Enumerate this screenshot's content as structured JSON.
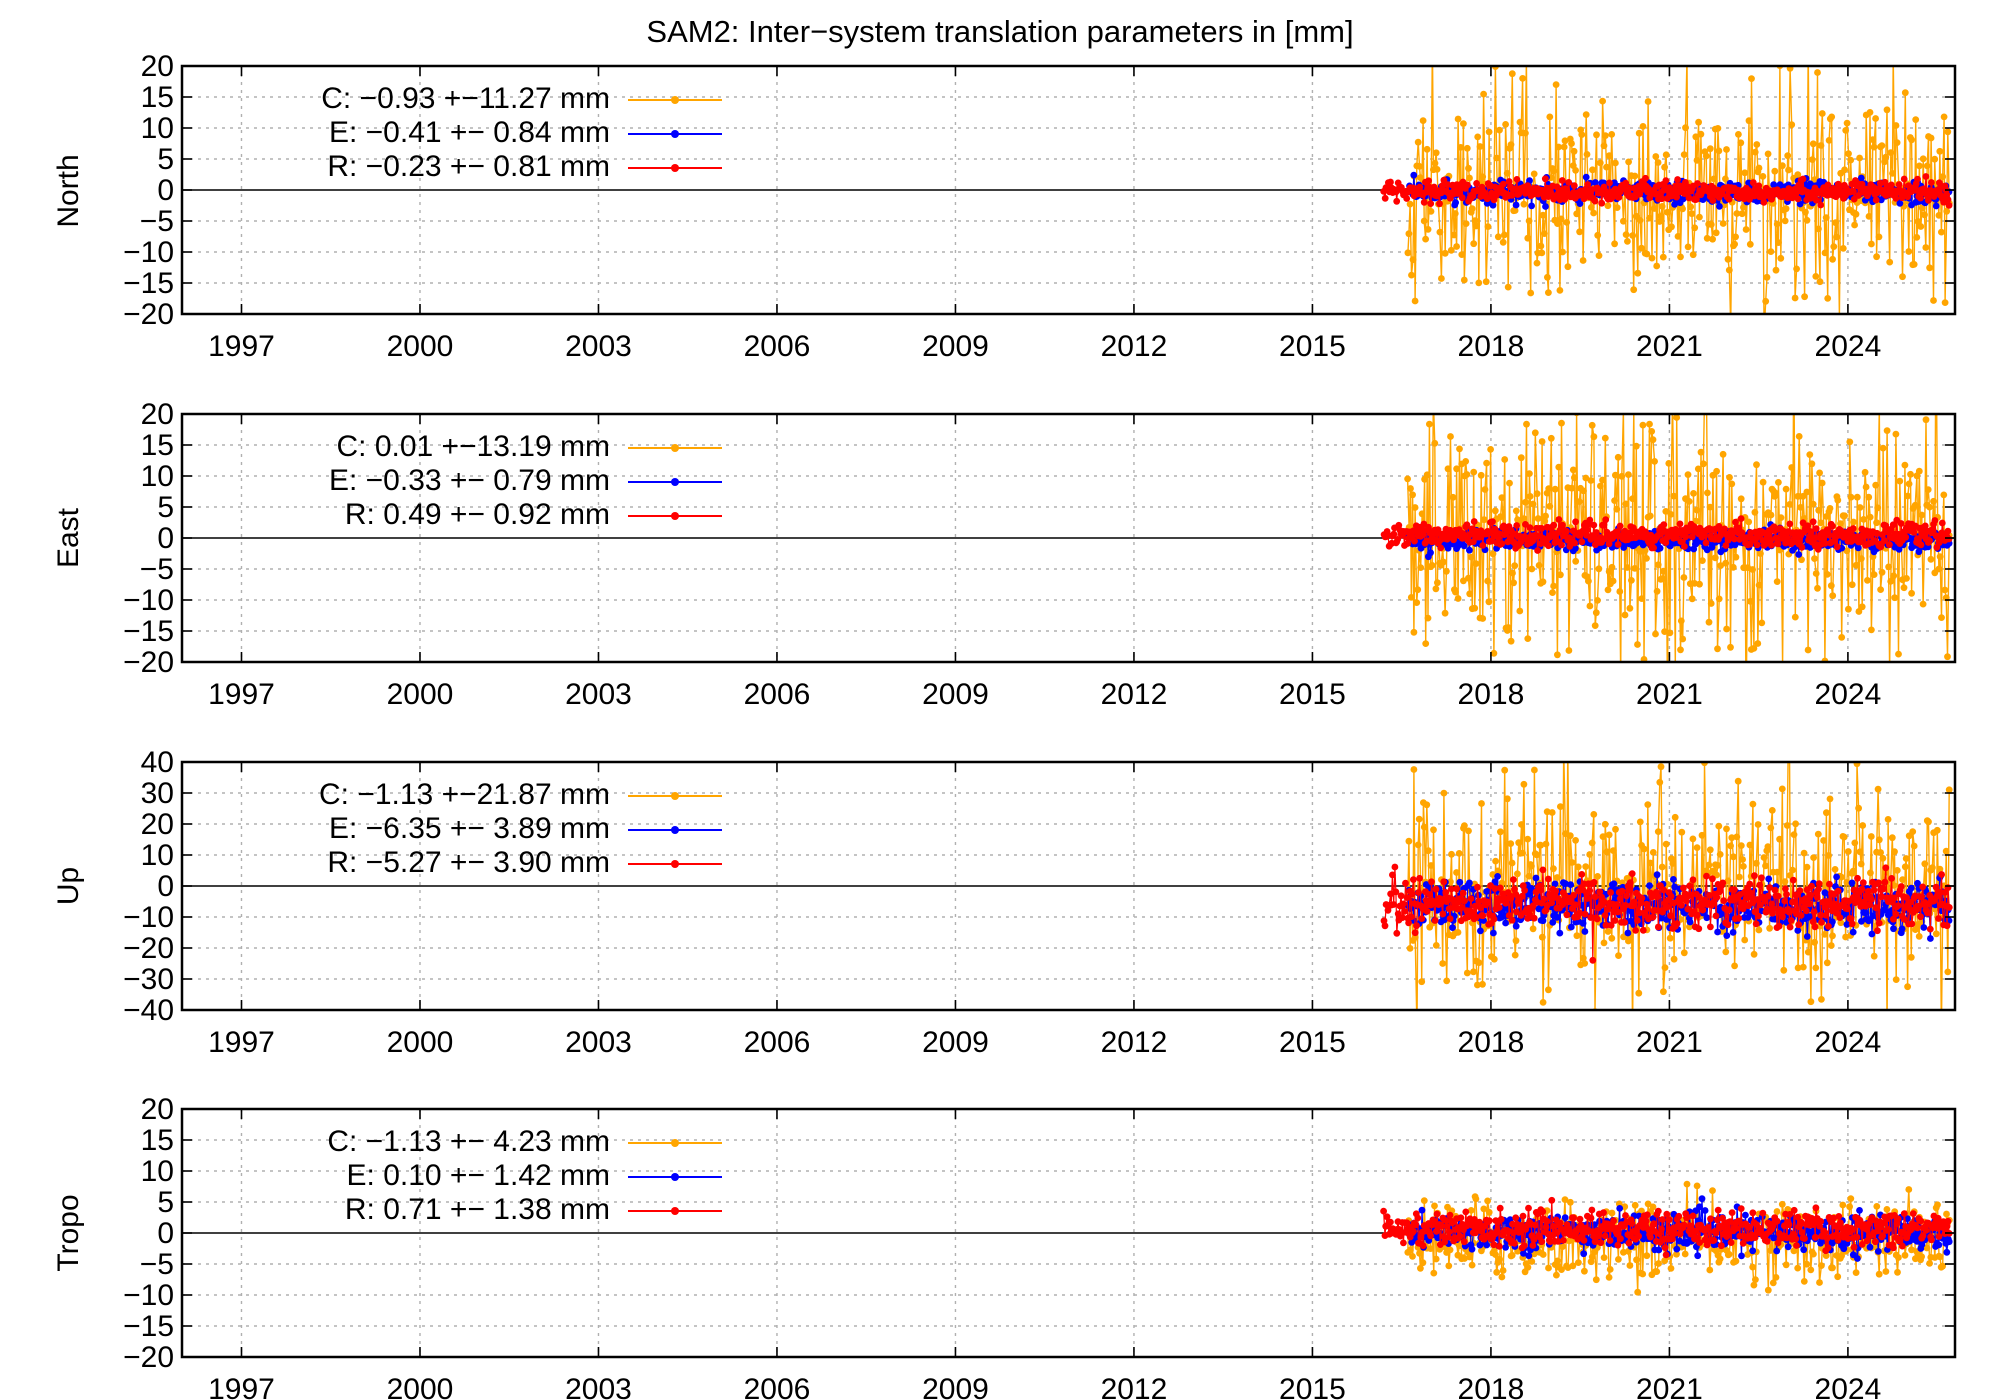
{
  "figure": {
    "title": "SAM2: Inter−system translation parameters in [mm]"
  },
  "chart_data": [
    {
      "type": "scatter",
      "panel": "north",
      "ylabel": "North",
      "ylim": [
        -20,
        20
      ],
      "yticks": [
        20,
        15,
        10,
        5,
        0,
        -5,
        -10,
        -15,
        -20
      ],
      "xlim": [
        1996.0,
        2025.8
      ],
      "xticks": [
        1997,
        2000,
        2003,
        2006,
        2009,
        2012,
        2015,
        2018,
        2021,
        2024
      ],
      "grid": true,
      "legend_position": "top-left",
      "series": [
        {
          "key": "C",
          "name": "C:",
          "label": "C:  −0.93 +−11.27 mm",
          "mean": -0.93,
          "std": 11.27,
          "color": "#ffa500",
          "start": 2016.6,
          "end": 2025.7
        },
        {
          "key": "E",
          "name": "E:",
          "label": "E:  −0.41 +− 0.84 mm",
          "mean": -0.41,
          "std": 0.84,
          "color": "#0000ff",
          "start": 2016.6,
          "end": 2025.7
        },
        {
          "key": "R",
          "name": "R:",
          "label": "R:  −0.23 +− 0.81 mm",
          "mean": -0.23,
          "std": 0.81,
          "color": "#ff0000",
          "start": 2016.2,
          "end": 2025.7
        }
      ]
    },
    {
      "type": "scatter",
      "panel": "east",
      "ylabel": "East",
      "ylim": [
        -20,
        20
      ],
      "yticks": [
        20,
        15,
        10,
        5,
        0,
        -5,
        -10,
        -15,
        -20
      ],
      "xlim": [
        1996.0,
        2025.8
      ],
      "xticks": [
        1997,
        2000,
        2003,
        2006,
        2009,
        2012,
        2015,
        2018,
        2021,
        2024
      ],
      "grid": true,
      "legend_position": "top-left",
      "series": [
        {
          "key": "C",
          "name": "C:",
          "label": "C:   0.01 +−13.19 mm",
          "mean": 0.01,
          "std": 13.19,
          "color": "#ffa500",
          "start": 2016.6,
          "end": 2025.7
        },
        {
          "key": "E",
          "name": "E:",
          "label": "E:  −0.33 +− 0.79 mm",
          "mean": -0.33,
          "std": 0.79,
          "color": "#0000ff",
          "start": 2016.6,
          "end": 2025.7
        },
        {
          "key": "R",
          "name": "R:",
          "label": "R:   0.49 +− 0.92 mm",
          "mean": 0.49,
          "std": 0.92,
          "color": "#ff0000",
          "start": 2016.2,
          "end": 2025.7
        }
      ]
    },
    {
      "type": "scatter",
      "panel": "up",
      "ylabel": "Up",
      "ylim": [
        -40,
        40
      ],
      "yticks": [
        40,
        30,
        20,
        10,
        0,
        -10,
        -20,
        -30,
        -40
      ],
      "xlim": [
        1996.0,
        2025.8
      ],
      "xticks": [
        1997,
        2000,
        2003,
        2006,
        2009,
        2012,
        2015,
        2018,
        2021,
        2024
      ],
      "grid": true,
      "legend_position": "top-left",
      "series": [
        {
          "key": "C",
          "name": "C:",
          "label": "C:  −1.13 +−21.87 mm",
          "mean": -1.13,
          "std": 21.87,
          "color": "#ffa500",
          "start": 2016.6,
          "end": 2025.7
        },
        {
          "key": "E",
          "name": "E:",
          "label": "E:  −6.35 +− 3.89 mm",
          "mean": -6.35,
          "std": 3.89,
          "color": "#0000ff",
          "start": 2016.6,
          "end": 2025.7
        },
        {
          "key": "R",
          "name": "R:",
          "label": "R:  −5.27 +− 3.90 mm",
          "mean": -5.27,
          "std": 3.9,
          "color": "#ff0000",
          "start": 2016.2,
          "end": 2025.7
        }
      ]
    },
    {
      "type": "scatter",
      "panel": "tropo",
      "ylabel": "Tropo",
      "ylim": [
        -20,
        20
      ],
      "yticks": [
        20,
        15,
        10,
        5,
        0,
        -5,
        -10,
        -15,
        -20
      ],
      "xlim": [
        1996.0,
        2025.8
      ],
      "xticks": [
        1997,
        2000,
        2003,
        2006,
        2009,
        2012,
        2015,
        2018,
        2021,
        2024
      ],
      "grid": true,
      "legend_position": "top-left",
      "series": [
        {
          "key": "C",
          "name": "C:",
          "label": "C:  −1.13 +− 4.23 mm",
          "mean": -1.13,
          "std": 4.23,
          "color": "#ffa500",
          "start": 2016.6,
          "end": 2025.7
        },
        {
          "key": "E",
          "name": "E:",
          "label": "E:   0.10 +− 1.42 mm",
          "mean": 0.1,
          "std": 1.42,
          "color": "#0000ff",
          "start": 2016.6,
          "end": 2025.7
        },
        {
          "key": "R",
          "name": "R:",
          "label": "R:   0.71 +− 1.38 mm",
          "mean": 0.71,
          "std": 1.38,
          "color": "#ff0000",
          "start": 2016.2,
          "end": 2025.7
        }
      ]
    }
  ]
}
